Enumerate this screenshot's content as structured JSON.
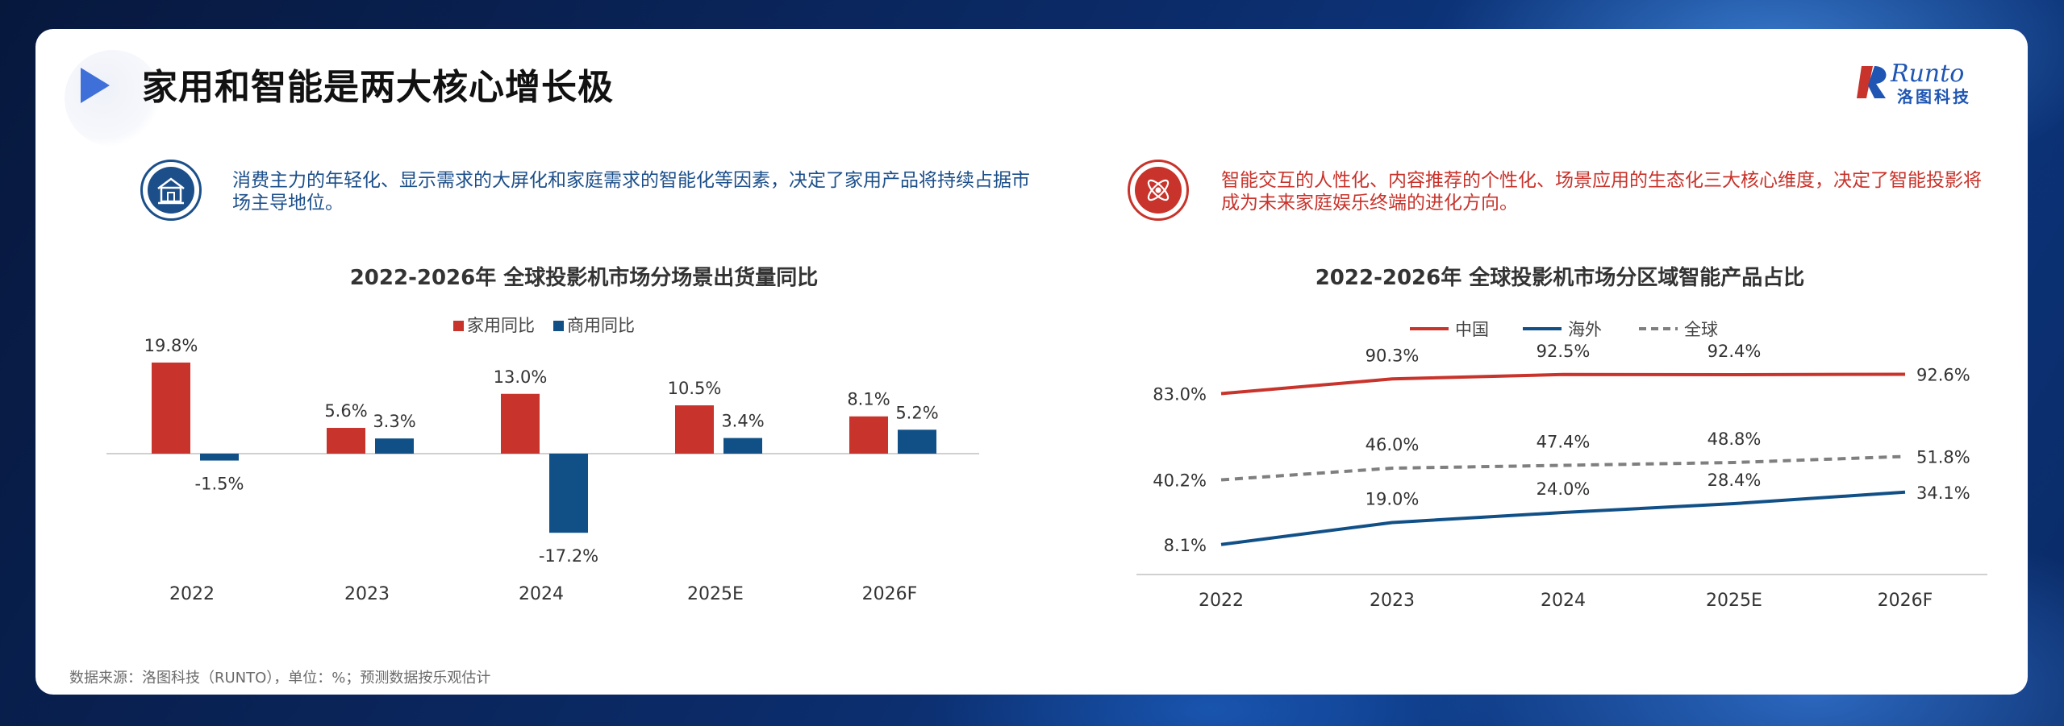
{
  "page": {
    "title": "家用和智能是两大核心增长极",
    "logo_text": "Runto",
    "logo_cn": "洛图科技",
    "footer": "数据来源：洛图科技（RUNTO），单位：%；预测数据按乐观估计"
  },
  "left": {
    "intro": "消费主力的年轻化、显示需求的大屏化和家庭需求的智能化等因素，决定了家用产品将持续占据市场主导地位。",
    "icon": "house-icon",
    "accent": "#1c4f8a"
  },
  "right": {
    "intro": "智能交互的人性化、内容推荐的个性化、场景应用的生态化三大核心维度，决定了智能投影将成为未来家庭娱乐终端的进化方向。",
    "icon": "atom-icon",
    "accent": "#c8332b"
  },
  "chart_data": [
    {
      "type": "bar",
      "title": "2022-2026年 全球投影机市场分场景出货量同比",
      "categories": [
        "2022",
        "2023",
        "2024",
        "2025E",
        "2026F"
      ],
      "series": [
        {
          "name": "家用同比",
          "values": [
            19.8,
            5.6,
            13.0,
            10.5,
            8.1
          ],
          "labels": [
            "19.8%",
            "5.6%",
            "13.0%",
            "10.5%",
            "8.1%"
          ],
          "color": "#c8332b"
        },
        {
          "name": "商用同比",
          "values": [
            -1.5,
            3.3,
            -17.2,
            3.4,
            5.2
          ],
          "labels": [
            "-1.5%",
            "3.3%",
            "-17.2%",
            "3.4%",
            "5.2%"
          ],
          "color": "#115087"
        }
      ],
      "ylim": [
        -18,
        20
      ],
      "legend": "top-center",
      "grid": false
    },
    {
      "type": "line",
      "title": "2022-2026年 全球投影机市场分区域智能产品占比",
      "categories": [
        "2022",
        "2023",
        "2024",
        "2025E",
        "2026F"
      ],
      "series": [
        {
          "name": "中国",
          "values": [
            83.0,
            90.3,
            92.5,
            92.4,
            92.6
          ],
          "labels": [
            "83.0%",
            "90.3%",
            "92.5%",
            "92.4%",
            "92.6%"
          ],
          "color": "#c8332b",
          "style": "solid"
        },
        {
          "name": "海外",
          "values": [
            8.1,
            19.0,
            24.0,
            28.4,
            34.1
          ],
          "labels": [
            "8.1%",
            "19.0%",
            "24.0%",
            "28.4%",
            "34.1%"
          ],
          "color": "#115087",
          "style": "solid"
        },
        {
          "name": "全球",
          "values": [
            40.2,
            46.0,
            47.4,
            48.8,
            51.8
          ],
          "labels": [
            "40.2%",
            "46.0%",
            "47.4%",
            "48.8%",
            "51.8%"
          ],
          "color": "#7f7f7f",
          "style": "dashed"
        }
      ],
      "ylim": [
        0,
        100
      ],
      "legend": "top-center",
      "grid": false
    }
  ]
}
